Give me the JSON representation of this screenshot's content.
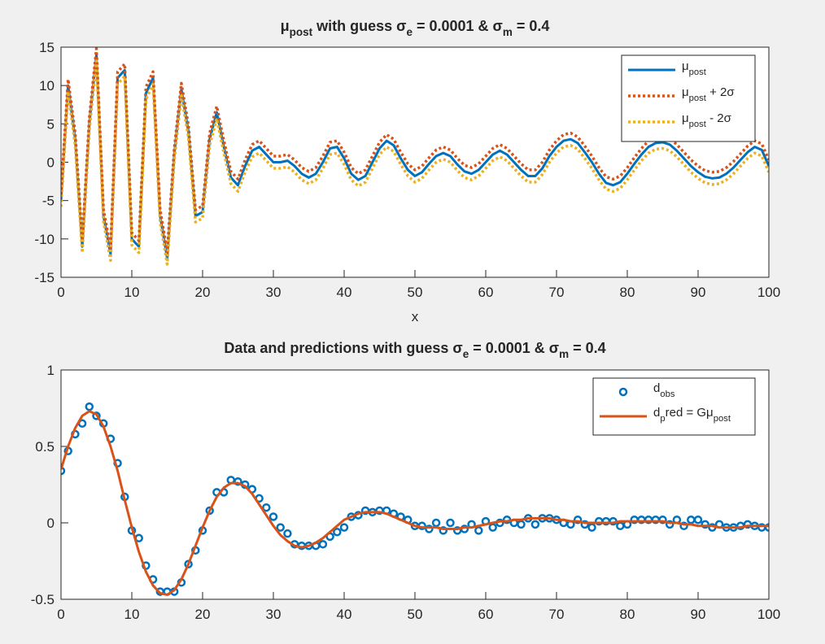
{
  "chart_data": [
    {
      "type": "line",
      "title": [
        {
          "text": "μ"
        },
        {
          "text": "post",
          "sub": true
        },
        {
          "text": " with guess σ"
        },
        {
          "text": "e",
          "sub": true
        },
        {
          "text": " = 0.0001 & σ"
        },
        {
          "text": "m",
          "sub": true
        },
        {
          "text": " = 0.4"
        }
      ],
      "x_label": "x",
      "x": [
        0,
        1,
        2,
        3,
        4,
        5,
        6,
        7,
        8,
        9,
        10,
        11,
        12,
        13,
        14,
        15,
        16,
        17,
        18,
        19,
        20,
        21,
        22,
        23,
        24,
        25,
        26,
        27,
        28,
        29,
        30,
        31,
        32,
        33,
        34,
        35,
        36,
        37,
        38,
        39,
        40,
        41,
        42,
        43,
        44,
        45,
        46,
        47,
        48,
        49,
        50,
        51,
        52,
        53,
        54,
        55,
        56,
        57,
        58,
        59,
        60,
        61,
        62,
        63,
        64,
        65,
        66,
        67,
        68,
        69,
        70,
        71,
        72,
        73,
        74,
        75,
        76,
        77,
        78,
        79,
        80,
        81,
        82,
        83,
        84,
        85,
        86,
        87,
        88,
        89,
        90,
        91,
        92,
        93,
        94,
        95,
        96,
        97,
        98,
        99,
        100
      ],
      "series": [
        {
          "name": [
            {
              "text": "μ"
            },
            {
              "text": "post",
              "sub": true
            }
          ],
          "color": "#0072bd",
          "style": "solid",
          "values": [
            -5,
            10,
            3,
            -11,
            5,
            14,
            -7,
            -12,
            11,
            12,
            -10,
            -11,
            9,
            11,
            -7,
            -12.5,
            1,
            9.5,
            4,
            -7,
            -6.5,
            3,
            6.5,
            2,
            -2,
            -3,
            -0.5,
            1.5,
            2,
            1,
            0,
            0,
            0.2,
            -0.5,
            -1.5,
            -2,
            -1.5,
            0,
            1.8,
            2,
            0.5,
            -1.5,
            -2.3,
            -1.8,
            0,
            1.8,
            2.8,
            2.2,
            0.5,
            -1,
            -1.8,
            -1.3,
            -0.2,
            0.8,
            1.2,
            0.8,
            -0.3,
            -1.2,
            -1.5,
            -1,
            0,
            1,
            1.5,
            1,
            0,
            -1,
            -1.8,
            -1.8,
            -0.8,
            0.8,
            2,
            2.8,
            3,
            2.5,
            1.3,
            0,
            -1.5,
            -2.7,
            -3,
            -2.6,
            -1.5,
            -0.2,
            1,
            2,
            2.5,
            2.6,
            2.3,
            1.5,
            0.5,
            -0.5,
            -1.3,
            -1.9,
            -2.1,
            -2,
            -1.5,
            -0.7,
            0.3,
            1.3,
            2,
            1.6,
            -0.5
          ]
        },
        {
          "name": [
            {
              "text": "μ"
            },
            {
              "text": "post",
              "sub": true
            },
            {
              "text": " + 2σ"
            }
          ],
          "color": "#d95319",
          "style": "dotted",
          "values": [
            -4.2,
            10.8,
            3.8,
            -10.2,
            5.8,
            14.8,
            -6.2,
            -11.2,
            11.8,
            12.8,
            -9.2,
            -10.2,
            9.8,
            11.8,
            -6.2,
            -11.7,
            1.8,
            10.3,
            4.8,
            -6.2,
            -5.7,
            3.8,
            7.3,
            2.8,
            -1.2,
            -2.2,
            0.3,
            2.3,
            2.8,
            1.8,
            0.8,
            0.8,
            1,
            0.3,
            -0.7,
            -1.2,
            -0.7,
            0.8,
            2.6,
            2.8,
            1.3,
            -0.7,
            -1.5,
            -1,
            0.8,
            2.6,
            3.6,
            3,
            1.3,
            -0.2,
            -1,
            -0.5,
            0.6,
            1.6,
            2,
            1.6,
            0.5,
            -0.4,
            -0.7,
            -0.2,
            0.8,
            1.8,
            2.3,
            1.8,
            0.8,
            -0.2,
            -1,
            -1,
            0,
            1.6,
            2.8,
            3.6,
            3.8,
            3.3,
            2.1,
            0.8,
            -0.7,
            -1.9,
            -2.2,
            -1.8,
            -0.7,
            0.6,
            1.8,
            2.8,
            3.3,
            3.4,
            3.1,
            2.3,
            1.3,
            0.3,
            -0.5,
            -1.1,
            -1.3,
            -1.2,
            -0.7,
            0.1,
            1.1,
            2.1,
            2.8,
            2.4,
            0.3
          ]
        },
        {
          "name": [
            {
              "text": "μ"
            },
            {
              "text": "post",
              "sub": true
            },
            {
              "text": " - 2σ"
            }
          ],
          "color": "#edb120",
          "style": "dotted",
          "values": [
            -5.8,
            9.2,
            2.2,
            -11.8,
            4.2,
            13.2,
            -7.8,
            -12.8,
            10.2,
            11.2,
            -10.8,
            -11.8,
            8.2,
            10.2,
            -7.8,
            -13.3,
            0.2,
            8.7,
            3.2,
            -7.8,
            -7.3,
            2.2,
            5.7,
            1.2,
            -2.8,
            -3.8,
            -1.3,
            0.7,
            1.2,
            0.2,
            -0.8,
            -0.8,
            -0.6,
            -1.3,
            -2.3,
            -2.8,
            -2.3,
            -0.8,
            1,
            1.2,
            -0.3,
            -2.3,
            -3.1,
            -2.6,
            -0.8,
            1,
            2,
            1.4,
            -0.3,
            -1.8,
            -2.6,
            -2.1,
            -1,
            0,
            0.4,
            0,
            -1.1,
            -2,
            -2.3,
            -1.8,
            -0.8,
            0.2,
            0.7,
            0.2,
            -0.8,
            -1.8,
            -2.6,
            -2.6,
            -1.6,
            0,
            1.2,
            2,
            2.2,
            1.7,
            0.5,
            -0.8,
            -2.3,
            -3.5,
            -3.8,
            -3.4,
            -2.3,
            -1,
            0.2,
            1.2,
            1.7,
            1.8,
            1.5,
            0.7,
            -0.3,
            -1.3,
            -2.1,
            -2.7,
            -2.9,
            -2.8,
            -2.3,
            -1.5,
            -0.5,
            0.5,
            1.2,
            0.8,
            -1.3
          ]
        }
      ],
      "xlim": [
        0,
        100
      ],
      "xticks": [
        0,
        10,
        20,
        30,
        40,
        50,
        60,
        70,
        80,
        90,
        100
      ],
      "ylim": [
        -15,
        15
      ],
      "yticks": [
        -15,
        -10,
        -5,
        0,
        5,
        10,
        15
      ],
      "legend": "upper right"
    },
    {
      "type": "line",
      "title": [
        {
          "text": "Data and predictions with guess σ"
        },
        {
          "text": "e",
          "sub": true
        },
        {
          "text": " = 0.0001 & σ"
        },
        {
          "text": "m",
          "sub": true
        },
        {
          "text": " = 0.4"
        }
      ],
      "x": [
        0,
        1,
        2,
        3,
        4,
        5,
        6,
        7,
        8,
        9,
        10,
        11,
        12,
        13,
        14,
        15,
        16,
        17,
        18,
        19,
        20,
        21,
        22,
        23,
        24,
        25,
        26,
        27,
        28,
        29,
        30,
        31,
        32,
        33,
        34,
        35,
        36,
        37,
        38,
        39,
        40,
        41,
        42,
        43,
        44,
        45,
        46,
        47,
        48,
        49,
        50,
        51,
        52,
        53,
        54,
        55,
        56,
        57,
        58,
        59,
        60,
        61,
        62,
        63,
        64,
        65,
        66,
        67,
        68,
        69,
        70,
        71,
        72,
        73,
        74,
        75,
        76,
        77,
        78,
        79,
        80,
        81,
        82,
        83,
        84,
        85,
        86,
        87,
        88,
        89,
        90,
        91,
        92,
        93,
        94,
        95,
        96,
        97,
        98,
        99,
        100
      ],
      "series": [
        {
          "name": [
            {
              "text": "d"
            },
            {
              "text": "obs",
              "sub": true
            }
          ],
          "color": "#0072bd",
          "style": "markers",
          "values": [
            0.34,
            0.47,
            0.58,
            0.65,
            0.76,
            0.7,
            0.65,
            0.55,
            0.39,
            0.17,
            -0.05,
            -0.1,
            -0.28,
            -0.37,
            -0.45,
            -0.45,
            -0.45,
            -0.39,
            -0.27,
            -0.18,
            -0.05,
            0.08,
            0.2,
            0.2,
            0.28,
            0.27,
            0.25,
            0.22,
            0.16,
            0.1,
            0.04,
            -0.03,
            -0.07,
            -0.14,
            -0.15,
            -0.15,
            -0.15,
            -0.14,
            -0.09,
            -0.06,
            -0.03,
            0.04,
            0.05,
            0.08,
            0.07,
            0.08,
            0.08,
            0.06,
            0.04,
            0.02,
            -0.02,
            -0.02,
            -0.04,
            0,
            -0.05,
            0,
            -0.05,
            -0.04,
            -0.01,
            -0.05,
            0.01,
            -0.03,
            0,
            0.02,
            0,
            -0.01,
            0.03,
            -0.01,
            0.03,
            0.03,
            0.02,
            0,
            -0.01,
            0.02,
            -0.01,
            -0.03,
            0.01,
            0.01,
            0.01,
            -0.02,
            -0.01,
            0.02,
            0.02,
            0.02,
            0.02,
            0.02,
            -0.01,
            0.02,
            -0.02,
            0.02,
            0.02,
            -0.01,
            -0.03,
            -0.01,
            -0.03,
            -0.03,
            -0.02,
            -0.01,
            -0.02,
            -0.03,
            -0.03
          ]
        },
        {
          "name": [
            {
              "text": "d"
            },
            {
              "text": "p",
              "sub": true
            },
            {
              "text": "red = Gμ"
            },
            {
              "text": "post",
              "sub": true
            }
          ],
          "color": "#d95319",
          "style": "solid",
          "values": [
            0.35,
            0.5,
            0.62,
            0.7,
            0.73,
            0.71,
            0.63,
            0.5,
            0.34,
            0.15,
            -0.03,
            -0.19,
            -0.32,
            -0.41,
            -0.46,
            -0.47,
            -0.44,
            -0.37,
            -0.27,
            -0.15,
            -0.03,
            0.08,
            0.17,
            0.23,
            0.26,
            0.26,
            0.24,
            0.19,
            0.12,
            0.05,
            -0.02,
            -0.08,
            -0.12,
            -0.15,
            -0.16,
            -0.15,
            -0.13,
            -0.1,
            -0.06,
            -0.02,
            0.02,
            0.04,
            0.06,
            0.07,
            0.07,
            0.07,
            0.06,
            0.04,
            0.02,
            0,
            -0.02,
            -0.03,
            -0.03,
            -0.03,
            -0.04,
            -0.04,
            -0.04,
            -0.03,
            -0.03,
            -0.02,
            -0.01,
            0,
            0.01,
            0.01,
            0.02,
            0.02,
            0.03,
            0.03,
            0.03,
            0.03,
            0.02,
            0.02,
            0.01,
            0.01,
            0,
            0,
            0,
            0,
            0,
            0.01,
            0.01,
            0.01,
            0.01,
            0.01,
            0.01,
            0.01,
            0,
            0,
            -0.01,
            -0.01,
            -0.02,
            -0.02,
            -0.02,
            -0.03,
            -0.03,
            -0.03,
            -0.03,
            -0.02,
            -0.02,
            -0.02,
            -0.02
          ]
        }
      ],
      "xlim": [
        0,
        100
      ],
      "xticks": [
        0,
        10,
        20,
        30,
        40,
        50,
        60,
        70,
        80,
        90,
        100
      ],
      "ylim": [
        -0.5,
        1
      ],
      "yticks": [
        -0.5,
        0,
        0.5,
        1
      ],
      "legend": "upper right"
    }
  ]
}
